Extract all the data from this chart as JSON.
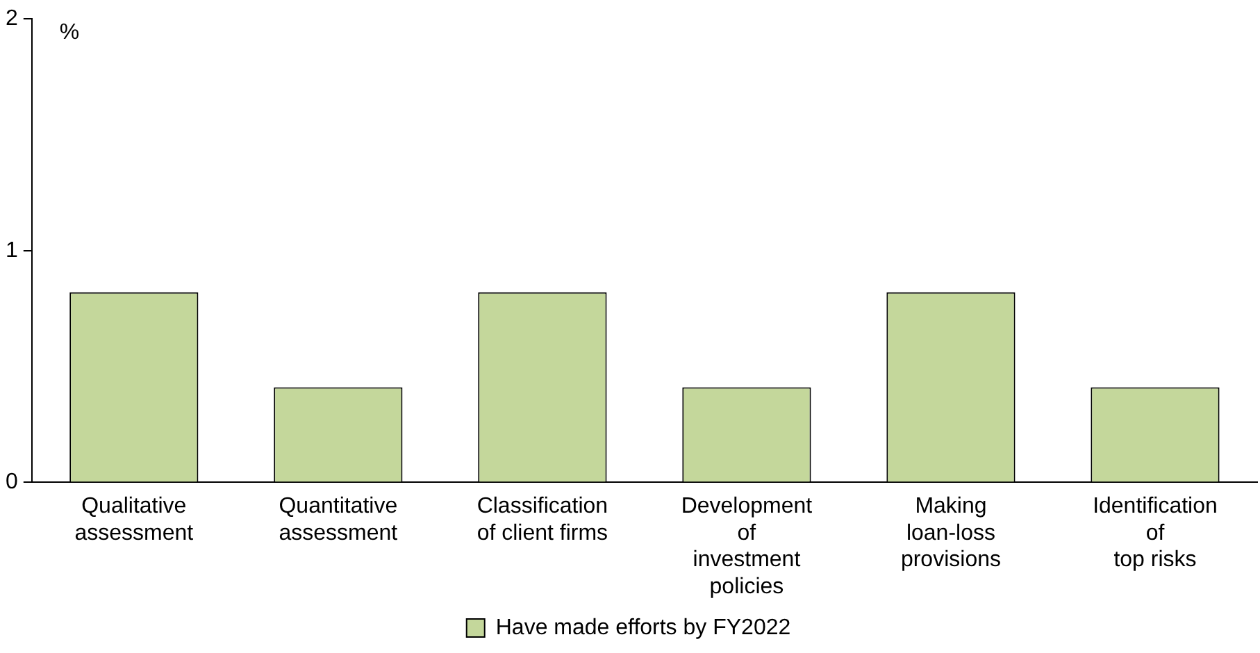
{
  "chart_data": {
    "type": "bar",
    "ylabel": "%",
    "categories": [
      "Qualitative\nassessment",
      "Quantitative\nassessment",
      "Classification\nof client firms",
      "Development\nof\ninvestment\npolicies",
      "Making\nloan-loss\nprovisions",
      "Identification\nof\ntop risks"
    ],
    "series": [
      {
        "name": "Have made efforts by FY2022",
        "color": "#c4d79b",
        "values": [
          0.82,
          0.41,
          0.82,
          0.41,
          0.82,
          0.41
        ]
      }
    ],
    "ylim": [
      0,
      2
    ],
    "yticks": [
      0,
      1,
      2
    ],
    "grid": false,
    "legend": "bottom"
  }
}
